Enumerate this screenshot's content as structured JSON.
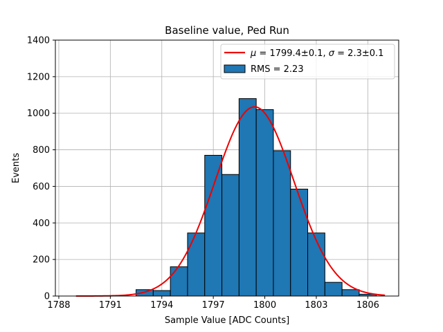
{
  "chart_data": {
    "type": "bar",
    "title": "Baseline value, Ped Run",
    "xlabel": "Sample Value [ADC Counts]",
    "ylabel": "Events",
    "xlim": [
      1787.8,
      1807.8
    ],
    "ylim": [
      0,
      1400
    ],
    "xticks": [
      1788,
      1791,
      1794,
      1797,
      1800,
      1803,
      1806
    ],
    "yticks": [
      0,
      200,
      400,
      600,
      800,
      1000,
      1200,
      1400
    ],
    "grid": true,
    "legend_position": "top-right",
    "histogram": {
      "name": "RMS = 2.23",
      "color": "#1f77b4",
      "edgecolor": "#000000",
      "bins": [
        {
          "x0": 1792.5,
          "x1": 1793.5,
          "value": 35
        },
        {
          "x0": 1793.5,
          "x1": 1794.5,
          "value": 30
        },
        {
          "x0": 1794.5,
          "x1": 1795.5,
          "value": 160
        },
        {
          "x0": 1795.5,
          "x1": 1796.5,
          "value": 345
        },
        {
          "x0": 1796.5,
          "x1": 1797.5,
          "value": 770
        },
        {
          "x0": 1797.5,
          "x1": 1798.5,
          "value": 665
        },
        {
          "x0": 1798.5,
          "x1": 1799.5,
          "value": 1080
        },
        {
          "x0": 1799.5,
          "x1": 1800.5,
          "value": 1020
        },
        {
          "x0": 1800.5,
          "x1": 1801.5,
          "value": 795
        },
        {
          "x0": 1801.5,
          "x1": 1802.5,
          "value": 585
        },
        {
          "x0": 1802.5,
          "x1": 1803.5,
          "value": 345
        },
        {
          "x0": 1803.5,
          "x1": 1804.5,
          "value": 75
        },
        {
          "x0": 1804.5,
          "x1": 1805.5,
          "value": 35
        },
        {
          "x0": 1805.5,
          "x1": 1806.5,
          "value": 10
        }
      ]
    },
    "fit": {
      "type": "gaussian",
      "name": "μ = 1799.4±0.1, σ = 2.3±0.1",
      "legend_parts": [
        "μ",
        " = 1799.4±0.1, ",
        "σ",
        " = 2.3±0.1"
      ],
      "color": "#ee0000",
      "mu": 1799.4,
      "sigma": 2.3,
      "amplitude": 1035,
      "x_range": [
        1789,
        1807
      ]
    }
  }
}
